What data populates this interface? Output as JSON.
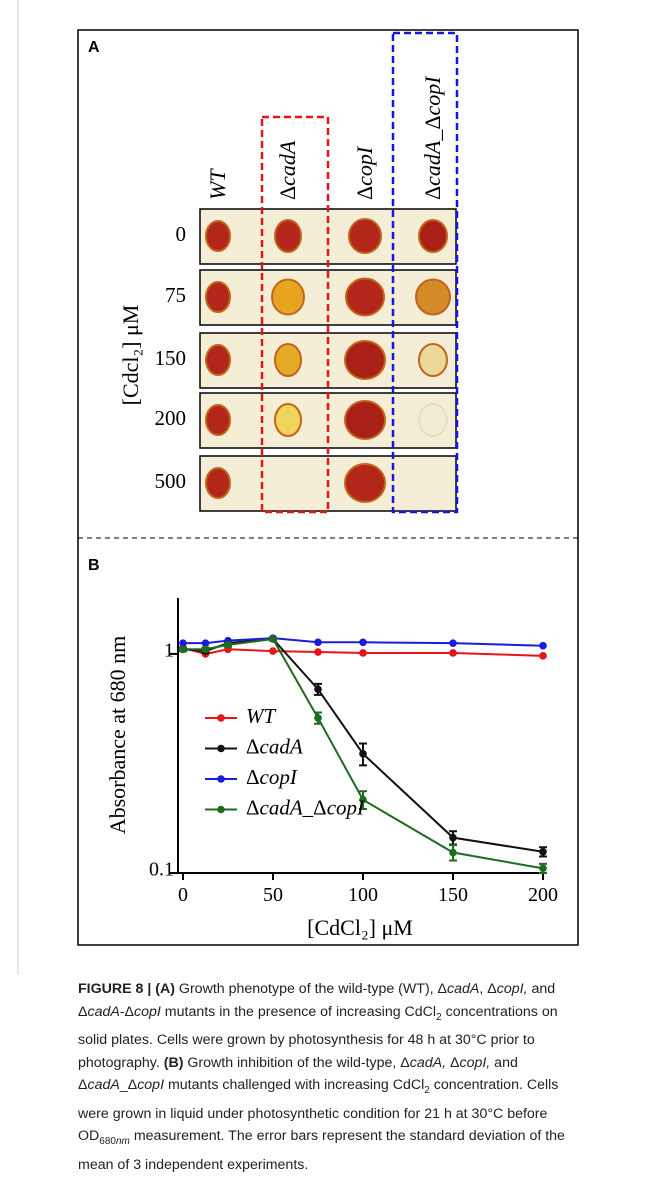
{
  "panel_a": {
    "label": "A",
    "axis_label": "[Cdcl₂] μM",
    "columns": [
      "WT",
      "ΔcadA",
      "ΔcopI",
      "ΔcadA_ΔcopI"
    ],
    "rows": [
      "0",
      "75",
      "150",
      "200",
      "500"
    ]
  },
  "chart_data": {
    "type": "line",
    "panel_label": "B",
    "x_label": "[CdCl₂] μM",
    "y_label": "Absorbance at 680 nm",
    "xlim": [
      0,
      200
    ],
    "xticks": [
      0,
      50,
      100,
      150,
      200
    ],
    "ylim": [
      0.1,
      1.8
    ],
    "yticks": [
      0.1,
      1
    ],
    "log_y": true,
    "x": [
      0,
      12.5,
      25,
      50,
      75,
      100,
      150,
      200
    ],
    "series": [
      {
        "name": "WT",
        "color": "#e8141a",
        "values": [
          1.065,
          1.0,
          1.05,
          1.03,
          1.02,
          1.01,
          1.01,
          0.98
        ]
      },
      {
        "name": "ΔcadA",
        "color": "#111111",
        "values": [
          1.05,
          1.03,
          1.12,
          1.17,
          0.69,
          0.35,
          0.145,
          0.125
        ],
        "errors": [
          0.02,
          0.02,
          0.02,
          0.02,
          0.04,
          0.04,
          0.01,
          0.006
        ]
      },
      {
        "name": "ΔcopI",
        "color": "#1a1ae0",
        "values": [
          1.12,
          1.12,
          1.15,
          1.18,
          1.13,
          1.13,
          1.12,
          1.09
        ]
      },
      {
        "name": "ΔcadA_ΔcopI",
        "color": "#1f6b1f",
        "values": [
          1.05,
          1.05,
          1.1,
          1.17,
          0.51,
          0.216,
          0.124,
          0.105
        ],
        "errors": [
          0.02,
          0.02,
          0.02,
          0.02,
          0.03,
          0.02,
          0.01,
          0.005
        ]
      }
    ]
  },
  "caption": {
    "runs": [
      {
        "text": "FIGURE 8 | (A)",
        "style": "b"
      },
      {
        "text": " Growth phenotype of the wild-type (WT), Δ",
        "style": ""
      },
      {
        "text": "cadA",
        "style": "i"
      },
      {
        "text": ", Δ",
        "style": ""
      },
      {
        "text": "copI,",
        "style": "i"
      },
      {
        "text": " and Δ",
        "style": ""
      },
      {
        "text": "cadA",
        "style": "i"
      },
      {
        "text": "-Δ",
        "style": ""
      },
      {
        "text": "copI",
        "style": "i"
      },
      {
        "text": " mutants in the presence of increasing CdCl",
        "style": ""
      },
      {
        "text": "2",
        "style": "sub"
      },
      {
        "text": " concentrations on solid plates. Cells were grown by photosynthesis for 48 h at 30°C prior to photography. ",
        "style": ""
      },
      {
        "text": "(B)",
        "style": "b"
      },
      {
        "text": " Growth inhibition of the wild-type, Δ",
        "style": ""
      },
      {
        "text": "cadA,",
        "style": "i"
      },
      {
        "text": " Δ",
        "style": ""
      },
      {
        "text": "copI,",
        "style": "i"
      },
      {
        "text": " and Δ",
        "style": ""
      },
      {
        "text": "cadA",
        "style": "i"
      },
      {
        "text": "_Δ",
        "style": ""
      },
      {
        "text": "copI",
        "style": "i"
      },
      {
        "text": " mutants challenged with increasing CdCl",
        "style": ""
      },
      {
        "text": "2",
        "style": "sub"
      },
      {
        "text": " concentration. Cells were grown in liquid under photosynthetic condition for 21 h at 30°C before OD",
        "style": ""
      },
      {
        "text": "680",
        "style": "sub"
      },
      {
        "text": "nm",
        "style": "subi"
      },
      {
        "text": " measurement. The error bars represent the standard deviation of the mean of 3 independent experiments.",
        "style": ""
      }
    ]
  }
}
